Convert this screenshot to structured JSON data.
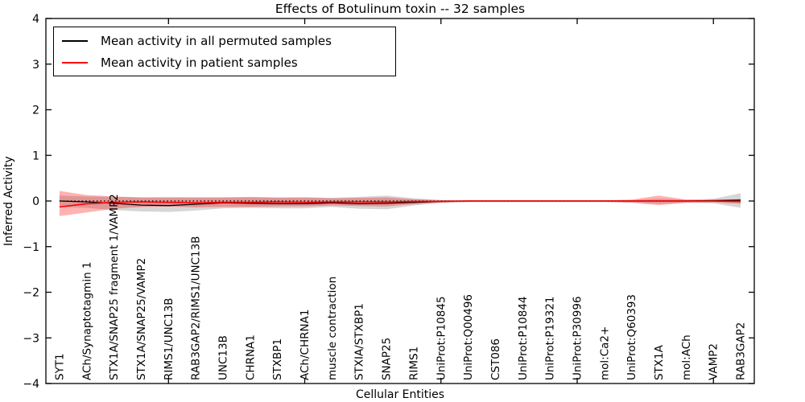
{
  "title": "Effects of Botulinum toxin -- 32 samples",
  "axes": {
    "ylabel": "Inferred Activity",
    "xlabel": "Cellular Entities"
  },
  "legend": {
    "position": "upper left",
    "items": [
      {
        "label": "Mean activity in all permuted samples",
        "color": "#000000"
      },
      {
        "label": "Mean activity in patient samples",
        "color": "#ff0000"
      }
    ]
  },
  "colors": {
    "background": "#ffffff",
    "axis": "#000000",
    "permuted_line": "#000000",
    "patient_line": "#ff0000",
    "permuted_band": "rgba(0,0,0,0.16)",
    "patient_band": "rgba(255,0,0,0.30)"
  },
  "chart_data": {
    "type": "line",
    "title": "Effects of Botulinum toxin -- 32 samples",
    "xlabel": "Cellular Entities",
    "ylabel": "Inferred Activity",
    "ylim": [
      -4,
      4
    ],
    "grid": false,
    "legend_position": "upper left",
    "yticks": [
      4,
      3,
      2,
      1,
      0,
      -1,
      -2,
      -3,
      -4
    ],
    "ytick_labels": [
      "4",
      "3",
      "2",
      "1",
      "0",
      "−1",
      "−2",
      "−3",
      "−4"
    ],
    "x_major_ticks": [
      5,
      10,
      15,
      20,
      25
    ],
    "categories": [
      "SYT1",
      "ACh/Synaptotagmin 1",
      "STX1A/SNAP25 fragment 1/VAMP2",
      "STX1A/SNAP25/VAMP2",
      "RIMS1/UNC13B",
      "RAB3GAP2/RIMS1/UNC13B",
      "UNC13B",
      "CHRNA1",
      "STXBP1",
      "ACh/CHRNA1",
      "muscle contraction",
      "STXIA/STXBP1",
      "SNAP25",
      "RIMS1",
      "UniProt:P10845",
      "UniProt:Q00496",
      "CST086",
      "UniProt:P10844",
      "UniProt:P19321",
      "UniProt:P30996",
      "mol:Ca2+",
      "UniProt:Q60393",
      "STX1A",
      "mol:ACh",
      "VAMP2",
      "RAB3GAP2"
    ],
    "reference_line": {
      "y": 0,
      "style": "dotted",
      "color": "#000000"
    },
    "series": [
      {
        "name": "Mean activity in all permuted samples",
        "color": "#000000",
        "band_alpha": 0.16,
        "values": [
          0.0,
          -0.02,
          -0.05,
          -0.09,
          -0.1,
          -0.07,
          -0.04,
          -0.05,
          -0.06,
          -0.06,
          -0.04,
          -0.06,
          -0.05,
          -0.03,
          -0.01,
          0.0,
          0.0,
          0.0,
          0.0,
          0.0,
          0.0,
          0.0,
          0.0,
          0.0,
          0.01,
          0.02
        ],
        "band_upper": [
          0.12,
          0.1,
          0.09,
          0.08,
          0.09,
          0.08,
          0.08,
          0.08,
          0.07,
          0.08,
          0.07,
          0.09,
          0.12,
          0.06,
          0.02,
          0.015,
          0.015,
          0.015,
          0.015,
          0.015,
          0.015,
          0.02,
          0.05,
          0.03,
          0.05,
          0.17
        ],
        "band_lower": [
          -0.13,
          -0.15,
          -0.2,
          -0.23,
          -0.24,
          -0.21,
          -0.16,
          -0.15,
          -0.16,
          -0.16,
          -0.13,
          -0.17,
          -0.18,
          -0.1,
          -0.04,
          -0.025,
          -0.025,
          -0.025,
          -0.025,
          -0.025,
          -0.025,
          -0.03,
          -0.06,
          -0.04,
          -0.05,
          -0.15
        ]
      },
      {
        "name": "Mean activity in patient samples",
        "color": "#ff0000",
        "band_alpha": 0.3,
        "values": [
          -0.13,
          -0.06,
          -0.03,
          -0.02,
          -0.03,
          -0.04,
          -0.03,
          -0.03,
          -0.02,
          -0.03,
          -0.02,
          -0.02,
          -0.02,
          -0.01,
          -0.01,
          0.0,
          0.0,
          0.0,
          0.0,
          0.0,
          0.0,
          0.0,
          0.0,
          0.0,
          0.0,
          -0.01
        ],
        "band_upper": [
          0.22,
          0.13,
          0.1,
          0.08,
          0.07,
          0.08,
          0.08,
          0.09,
          0.08,
          0.08,
          0.06,
          0.07,
          0.08,
          0.04,
          0.02,
          0.015,
          0.015,
          0.015,
          0.015,
          0.015,
          0.015,
          0.03,
          0.12,
          0.03,
          0.02,
          0.04
        ],
        "band_lower": [
          -0.33,
          -0.25,
          -0.17,
          -0.13,
          -0.12,
          -0.14,
          -0.13,
          -0.13,
          -0.12,
          -0.12,
          -0.1,
          -0.11,
          -0.12,
          -0.07,
          -0.03,
          -0.02,
          -0.02,
          -0.02,
          -0.02,
          -0.02,
          -0.02,
          -0.04,
          -0.09,
          -0.04,
          -0.03,
          -0.06
        ]
      }
    ]
  }
}
